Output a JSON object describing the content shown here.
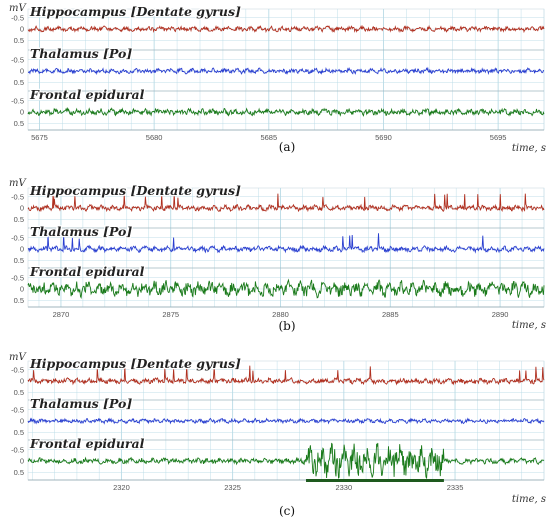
{
  "colors": {
    "hippocampus": "#b03020",
    "thalamus": "#2a3fd0",
    "frontal": "#1a7a1a",
    "grid": "#b9dbe6",
    "marker": "#1e5a1e"
  },
  "chart_data": [
    {
      "type": "line",
      "panel_label": "(a)",
      "y_unit": "mV",
      "x_unit": "time, s",
      "x_ticks": [
        5675,
        5680,
        5685,
        5690,
        5695
      ],
      "xlim": [
        5674.5,
        5697
      ],
      "y_ticks": [
        "-0.5",
        "0",
        "0.5"
      ],
      "ylim": [
        -0.75,
        0.75
      ],
      "grid": true,
      "series": [
        {
          "name": "Hippocampus [Dentate gyrus]",
          "color_key": "hippocampus",
          "amplitude": 0.13,
          "spikes": 0
        },
        {
          "name": "Thalamus [Po]",
          "color_key": "thalamus",
          "amplitude": 0.13,
          "spikes": 0
        },
        {
          "name": "Frontal epidural",
          "color_key": "frontal",
          "amplitude": 0.17,
          "spikes": 0
        }
      ]
    },
    {
      "type": "line",
      "panel_label": "(b)",
      "y_unit": "mV",
      "x_unit": "time, s",
      "x_ticks": [
        2870,
        2875,
        2880,
        2885,
        2890
      ],
      "xlim": [
        2868.5,
        2892
      ],
      "y_ticks": [
        "-0.5",
        "0",
        "0.5"
      ],
      "ylim": [
        -0.75,
        0.75
      ],
      "grid": true,
      "series": [
        {
          "name": "Hippocampus [Dentate gyrus]",
          "color_key": "hippocampus",
          "amplitude": 0.15,
          "spikes": 18
        },
        {
          "name": "Thalamus [Po]",
          "color_key": "thalamus",
          "amplitude": 0.15,
          "spikes": 10
        },
        {
          "name": "Frontal epidural",
          "color_key": "frontal",
          "amplitude": 0.4,
          "spikes": 0
        }
      ]
    },
    {
      "type": "line",
      "panel_label": "(c)",
      "y_unit": "mV",
      "x_unit": "time, s",
      "x_ticks": [
        2320,
        2325,
        2330,
        2335
      ],
      "xlim": [
        2315.8,
        2339
      ],
      "y_ticks": [
        "-0.5",
        "0",
        "0.5"
      ],
      "ylim": [
        -0.75,
        0.75
      ],
      "grid": true,
      "series": [
        {
          "name": "Hippocampus [Dentate gyrus]",
          "color_key": "hippocampus",
          "amplitude": 0.15,
          "spikes": 16
        },
        {
          "name": "Thalamus [Po]",
          "color_key": "thalamus",
          "amplitude": 0.11,
          "spikes": 0
        },
        {
          "name": "Frontal epidural",
          "color_key": "frontal",
          "amplitude": 0.15,
          "spikes": 0,
          "burst": [
            2328.3,
            2334.5
          ],
          "burst_amplitude": 0.85
        }
      ],
      "annotations": [
        {
          "type": "bar_marker",
          "x_range": [
            2328.3,
            2334.5
          ],
          "channel": "Frontal epidural"
        }
      ]
    }
  ]
}
